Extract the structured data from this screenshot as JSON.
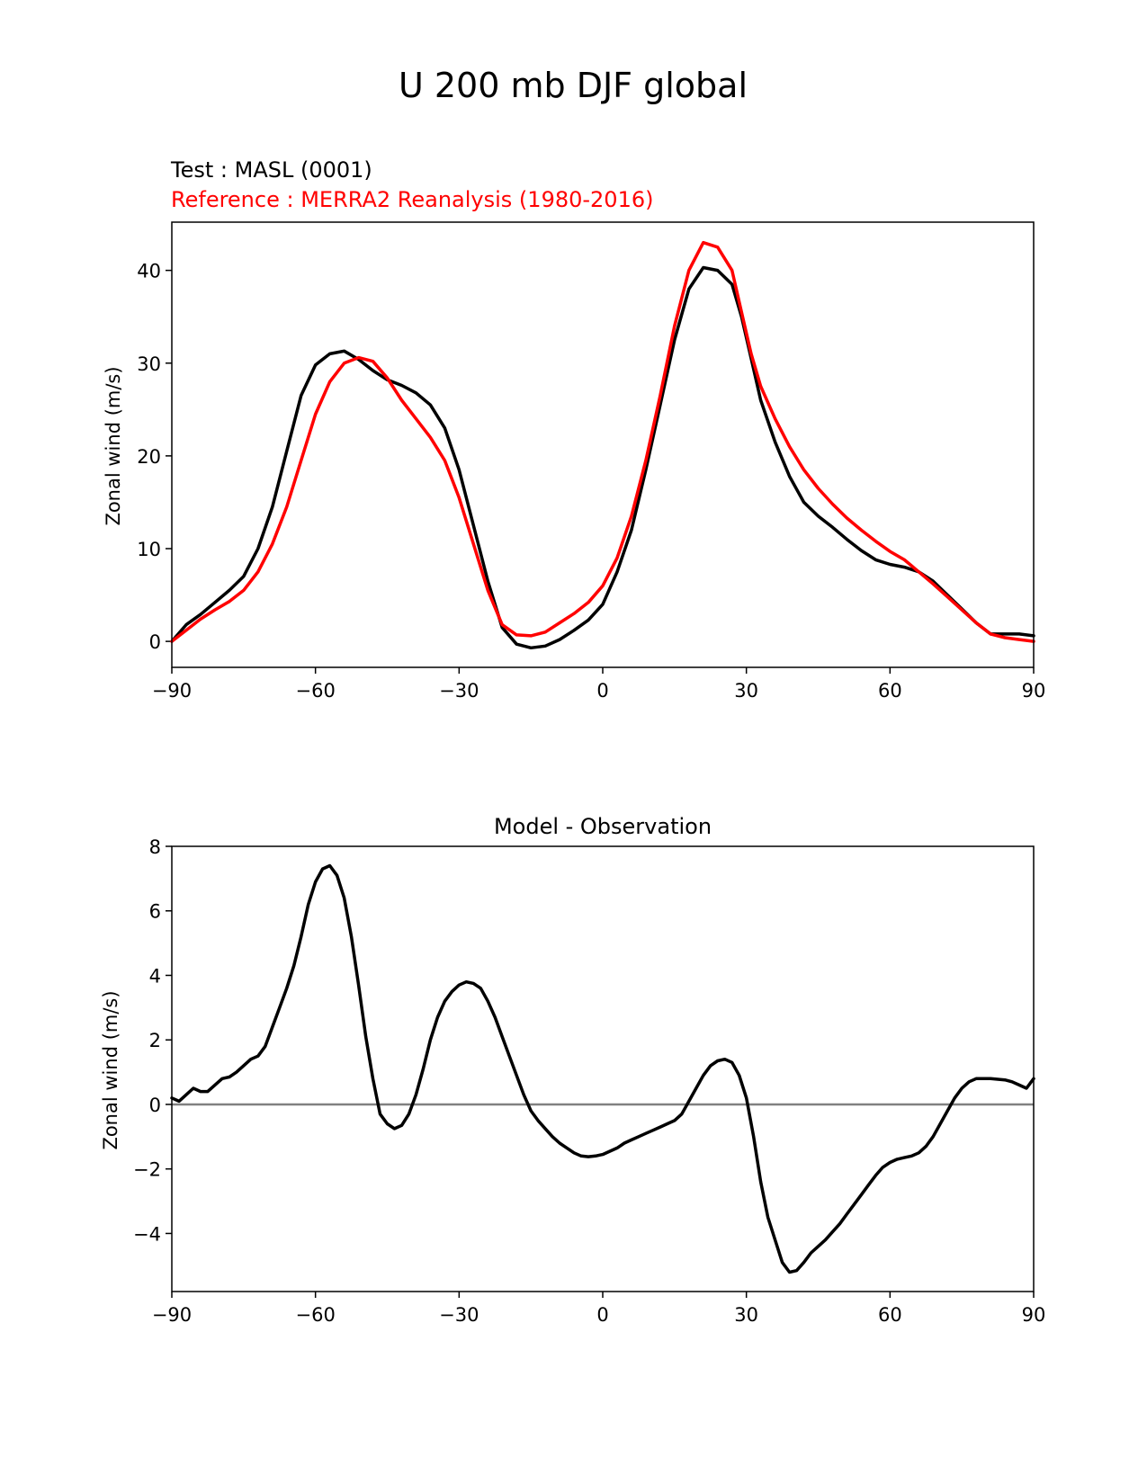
{
  "figure": {
    "suptitle": "U 200 mb DJF global"
  },
  "chart_data": [
    {
      "type": "line",
      "test_label": "Test : MASL (0001)",
      "reference_label": "Reference : MERRA2 Reanalysis (1980-2016)",
      "ylabel": "Zonal wind (m/s)",
      "xlabel": "",
      "xlim": [
        -90,
        90
      ],
      "ylim": [
        -2.8,
        45.2
      ],
      "xticks": [
        -90,
        -60,
        -30,
        0,
        30,
        60,
        90
      ],
      "xtick_labels": [
        "−90",
        "−60",
        "−30",
        "0",
        "30",
        "60",
        "90"
      ],
      "yticks": [
        0,
        10,
        20,
        30,
        40
      ],
      "ytick_labels": [
        "0",
        "10",
        "20",
        "30",
        "40"
      ],
      "grid": false,
      "series": [
        {
          "color": "#000000",
          "x": [
            -90,
            -87,
            -84,
            -81,
            -78,
            -75,
            -72,
            -69,
            -66,
            -63,
            -60,
            -57,
            -54,
            -51,
            -48,
            -45,
            -42,
            -39,
            -36,
            -33,
            -30,
            -27,
            -24,
            -21,
            -18,
            -15,
            -12,
            -9,
            -6,
            -3,
            0,
            3,
            6,
            9,
            12,
            15,
            18,
            21,
            24,
            27,
            29,
            31,
            33,
            36,
            39,
            42,
            45,
            48,
            51,
            54,
            57,
            60,
            63,
            66,
            69,
            72,
            75,
            78,
            81,
            84,
            87,
            90
          ],
          "y": [
            0.0,
            1.8,
            2.9,
            4.2,
            5.5,
            7.0,
            10.0,
            14.5,
            20.5,
            26.5,
            29.8,
            31.0,
            31.3,
            30.4,
            29.2,
            28.2,
            27.6,
            26.8,
            25.5,
            23.0,
            18.5,
            12.5,
            6.5,
            1.5,
            -0.3,
            -0.7,
            -0.5,
            0.2,
            1.2,
            2.3,
            4.0,
            7.5,
            12.0,
            18.5,
            25.5,
            32.5,
            38.0,
            40.3,
            40.0,
            38.5,
            35.0,
            30.5,
            26.0,
            21.5,
            17.8,
            15.0,
            13.5,
            12.3,
            11.0,
            9.8,
            8.8,
            8.3,
            8.0,
            7.5,
            6.5,
            5.0,
            3.5,
            2.0,
            0.8,
            0.8,
            0.8,
            0.6
          ]
        },
        {
          "color": "#ff0000",
          "x": [
            -90,
            -87,
            -84,
            -81,
            -78,
            -75,
            -72,
            -69,
            -66,
            -63,
            -60,
            -57,
            -54,
            -51,
            -48,
            -45,
            -42,
            -39,
            -36,
            -33,
            -30,
            -27,
            -24,
            -21,
            -18,
            -15,
            -12,
            -9,
            -6,
            -3,
            0,
            3,
            6,
            9,
            12,
            15,
            18,
            21,
            24,
            27,
            29,
            31,
            33,
            36,
            39,
            42,
            45,
            48,
            51,
            54,
            57,
            60,
            63,
            66,
            69,
            72,
            75,
            78,
            81,
            84,
            87,
            90
          ],
          "y": [
            0.0,
            1.2,
            2.4,
            3.4,
            4.3,
            5.5,
            7.5,
            10.5,
            14.5,
            19.5,
            24.5,
            28.0,
            30.0,
            30.6,
            30.2,
            28.4,
            26.0,
            24.0,
            22.0,
            19.5,
            15.5,
            10.5,
            5.5,
            1.8,
            0.7,
            0.6,
            1.0,
            2.0,
            3.0,
            4.2,
            6.0,
            9.0,
            13.5,
            19.5,
            26.5,
            34.0,
            40.0,
            43.0,
            42.5,
            40.0,
            35.5,
            31.0,
            27.5,
            24.0,
            21.0,
            18.5,
            16.5,
            14.8,
            13.3,
            12.0,
            10.8,
            9.7,
            8.8,
            7.5,
            6.2,
            4.8,
            3.4,
            2.0,
            0.8,
            0.4,
            0.2,
            0.0
          ]
        }
      ]
    },
    {
      "type": "line",
      "title": "Model - Observation",
      "ylabel": "Zonal wind (m/s)",
      "xlabel": "",
      "xlim": [
        -90,
        90
      ],
      "ylim": [
        -5.8,
        8.0
      ],
      "xticks": [
        -90,
        -60,
        -30,
        0,
        30,
        60,
        90
      ],
      "xtick_labels": [
        "−90",
        "−60",
        "−30",
        "0",
        "30",
        "60",
        "90"
      ],
      "yticks": [
        -4,
        -2,
        0,
        2,
        4,
        6,
        8
      ],
      "ytick_labels": [
        "−4",
        "−2",
        "0",
        "2",
        "4",
        "6",
        "8"
      ],
      "grid": false,
      "zero_line_color": "#808080",
      "series": [
        {
          "color": "#000000",
          "x": [
            -90,
            -88.5,
            -87,
            -85.5,
            -84,
            -82.5,
            -81,
            -79.5,
            -78,
            -76.5,
            -75,
            -73.5,
            -72,
            -70.5,
            -69,
            -67.5,
            -66,
            -64.5,
            -63,
            -61.5,
            -60,
            -58.5,
            -57,
            -55.5,
            -54,
            -52.5,
            -51,
            -49.5,
            -48,
            -46.5,
            -45,
            -43.5,
            -42,
            -40.5,
            -39,
            -37.5,
            -36,
            -34.5,
            -33,
            -31.5,
            -30,
            -28.5,
            -27,
            -25.5,
            -24,
            -22.5,
            -21,
            -19.5,
            -18,
            -16.5,
            -15,
            -13.5,
            -12,
            -10.5,
            -9,
            -7.5,
            -6,
            -4.5,
            -3,
            -1.5,
            0,
            1.5,
            3,
            4.5,
            6,
            7.5,
            9,
            10.5,
            12,
            13.5,
            15,
            16.5,
            18,
            19.5,
            21,
            22.5,
            24,
            25.5,
            27,
            28.5,
            30,
            31.5,
            33,
            34.5,
            36,
            37.5,
            39,
            40.5,
            42,
            43.5,
            45,
            46.5,
            48,
            49.5,
            51,
            52.5,
            54,
            55.5,
            57,
            58.5,
            60,
            61.5,
            63,
            64.5,
            66,
            67.5,
            69,
            70.5,
            72,
            73.5,
            75,
            76.5,
            78,
            79.5,
            81,
            82.5,
            84,
            85.5,
            87,
            88.5,
            90
          ],
          "y": [
            0.2,
            0.1,
            0.3,
            0.5,
            0.4,
            0.4,
            0.6,
            0.8,
            0.85,
            1.0,
            1.2,
            1.4,
            1.5,
            1.8,
            2.4,
            3.0,
            3.6,
            4.3,
            5.2,
            6.2,
            6.9,
            7.3,
            7.4,
            7.1,
            6.4,
            5.2,
            3.7,
            2.1,
            0.8,
            -0.3,
            -0.6,
            -0.75,
            -0.65,
            -0.3,
            0.3,
            1.1,
            2.0,
            2.7,
            3.2,
            3.5,
            3.7,
            3.8,
            3.75,
            3.6,
            3.2,
            2.7,
            2.1,
            1.5,
            0.9,
            0.3,
            -0.2,
            -0.5,
            -0.75,
            -1.0,
            -1.2,
            -1.35,
            -1.5,
            -1.6,
            -1.62,
            -1.6,
            -1.55,
            -1.45,
            -1.35,
            -1.2,
            -1.1,
            -1.0,
            -0.9,
            -0.8,
            -0.7,
            -0.6,
            -0.5,
            -0.3,
            0.1,
            0.5,
            0.9,
            1.2,
            1.35,
            1.4,
            1.3,
            0.9,
            0.2,
            -1.0,
            -2.4,
            -3.5,
            -4.2,
            -4.9,
            -5.2,
            -5.15,
            -4.9,
            -4.6,
            -4.4,
            -4.2,
            -3.95,
            -3.7,
            -3.4,
            -3.1,
            -2.8,
            -2.5,
            -2.2,
            -1.95,
            -1.8,
            -1.7,
            -1.65,
            -1.6,
            -1.5,
            -1.3,
            -1.0,
            -0.6,
            -0.2,
            0.2,
            0.5,
            0.7,
            0.8,
            0.8,
            0.8,
            0.78,
            0.76,
            0.7,
            0.6,
            0.5,
            0.8
          ]
        }
      ]
    }
  ]
}
